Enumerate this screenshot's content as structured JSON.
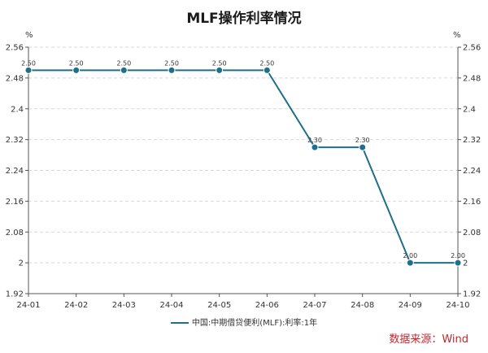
{
  "chart_data": {
    "type": "line",
    "title": "MLF操作利率情况",
    "categories": [
      "24-01",
      "24-02",
      "24-03",
      "24-04",
      "24-05",
      "24-06",
      "24-07",
      "24-08",
      "24-09",
      "24-10"
    ],
    "series": [
      {
        "name": "中国:中期借贷便利(MLF):利率:1年",
        "values": [
          2.5,
          2.5,
          2.5,
          2.5,
          2.5,
          2.5,
          2.3,
          2.3,
          2.0,
          2.0
        ],
        "data_labels": [
          "2.50",
          "2.50",
          "2.50",
          "2.50",
          "2.50",
          "2.50",
          "2.30",
          "2.30",
          "2.00",
          "2.00"
        ],
        "color": "#1f6f8b"
      }
    ],
    "ylim": [
      1.92,
      2.56
    ],
    "yticks": [
      1.92,
      2,
      2.08,
      2.16,
      2.24,
      2.32,
      2.4,
      2.48,
      2.56
    ],
    "ytick_labels": [
      "1.92",
      "2",
      "2.08",
      "2.16",
      "2.24",
      "2.32",
      "2.4",
      "2.48",
      "2.56"
    ],
    "yunit_left": "%",
    "yunit_right": "%",
    "grid": true,
    "legend_position": "bottom-center",
    "source": "数据来源：Wind"
  }
}
